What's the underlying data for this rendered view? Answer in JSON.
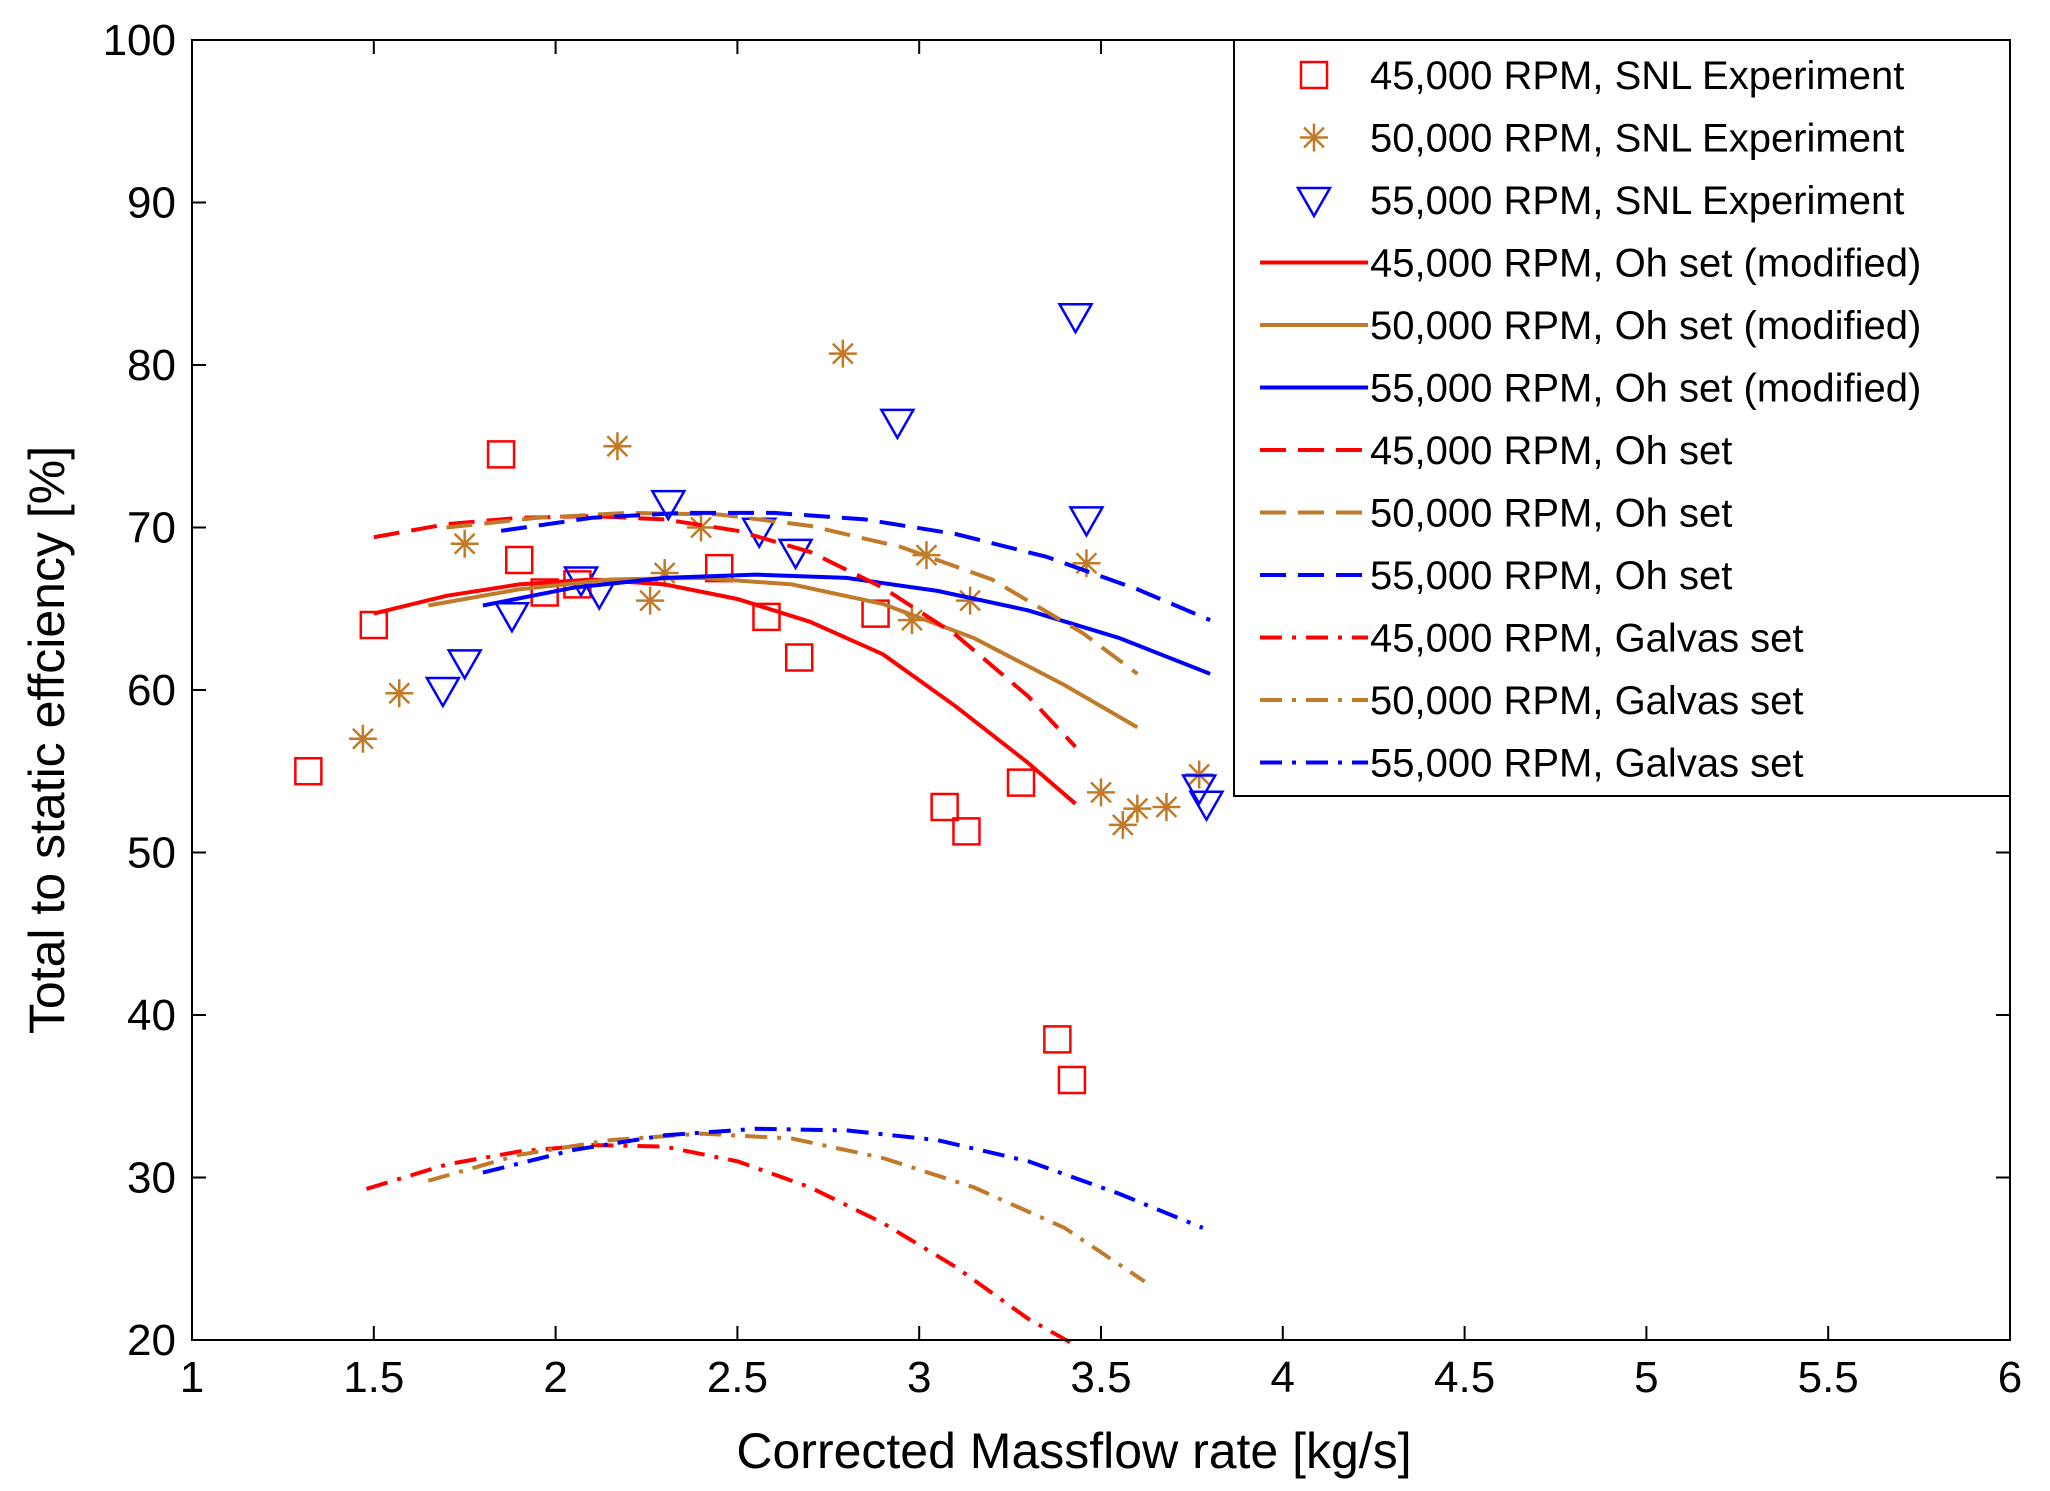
{
  "chart_data": {
    "type": "scatter",
    "title": "",
    "xlabel": "Corrected Massflow rate [kg/s]",
    "ylabel": "Total to static effciency [%]",
    "xlim": [
      1,
      6
    ],
    "ylim": [
      20,
      100
    ],
    "x_ticks": [
      1,
      1.5,
      2,
      2.5,
      3,
      3.5,
      4,
      4.5,
      5,
      5.5,
      6
    ],
    "x_tick_labels": [
      "1",
      "1.5",
      "2",
      "2.5",
      "3",
      "3.5",
      "4",
      "4.5",
      "5",
      "5.5",
      "6"
    ],
    "y_ticks": [
      20,
      30,
      40,
      50,
      60,
      70,
      80,
      90,
      100
    ],
    "y_tick_labels": [
      "20",
      "30",
      "40",
      "50",
      "60",
      "70",
      "80",
      "90",
      "100"
    ],
    "grid": false,
    "legend_position": "top-right",
    "colors": {
      "red": "#ff0000",
      "gold": "#c07a2a",
      "blue": "#0000ff"
    },
    "series": [
      {
        "name": "45,000 RPM, SNL Experiment",
        "kind": "marker",
        "marker": "square",
        "color": "#ff0000",
        "x": [
          1.32,
          1.5,
          1.85,
          1.9,
          1.97,
          2.06,
          2.45,
          2.58,
          2.67,
          2.88,
          3.07,
          3.13,
          3.28,
          3.38,
          3.42
        ],
        "y": [
          55,
          64,
          74.5,
          68,
          66,
          66.5,
          67.5,
          64.5,
          62,
          64.7,
          52.8,
          51.3,
          54.3,
          38.5,
          36
        ]
      },
      {
        "name": "50,000 RPM, SNL Experiment",
        "kind": "marker",
        "marker": "asterisk",
        "color": "#c07a2a",
        "x": [
          1.47,
          1.57,
          1.75,
          2.17,
          2.26,
          2.3,
          2.4,
          2.79,
          2.98,
          3.02,
          3.14,
          3.46,
          3.5,
          3.56,
          3.6,
          3.68,
          3.77
        ],
        "y": [
          57,
          59.8,
          69,
          75,
          65.5,
          67.2,
          70,
          80.7,
          64.3,
          68.3,
          65.5,
          67.8,
          53.7,
          51.7,
          52.7,
          52.8,
          54.8
        ]
      },
      {
        "name": "55,000 RPM, SNL Experiment",
        "kind": "marker",
        "marker": "triangle-down",
        "color": "#0000ff",
        "x": [
          1.69,
          1.75,
          1.88,
          2.07,
          2.12,
          2.31,
          2.56,
          2.66,
          2.94,
          3.43,
          3.46,
          3.77,
          3.79
        ],
        "y": [
          60,
          61.7,
          64.6,
          66.8,
          66,
          71.5,
          69.8,
          68.5,
          76.5,
          83,
          70.5,
          54,
          53
        ]
      },
      {
        "name": "45,000 RPM, Oh set (modified)",
        "kind": "line",
        "dash": "solid",
        "color": "#ff0000",
        "x": [
          1.5,
          1.7,
          1.9,
          2.1,
          2.3,
          2.5,
          2.7,
          2.9,
          3.1,
          3.3,
          3.43
        ],
        "y": [
          64.7,
          65.8,
          66.5,
          66.8,
          66.5,
          65.6,
          64.2,
          62.2,
          59.0,
          55.5,
          53.0
        ]
      },
      {
        "name": "50,000 RPM, Oh set (modified)",
        "kind": "line",
        "dash": "solid",
        "color": "#c07a2a",
        "x": [
          1.65,
          1.9,
          2.15,
          2.4,
          2.65,
          2.9,
          3.15,
          3.4,
          3.6
        ],
        "y": [
          65.2,
          66.2,
          66.8,
          66.9,
          66.5,
          65.3,
          63.2,
          60.3,
          57.7
        ]
      },
      {
        "name": "55,000 RPM, Oh set (modified)",
        "kind": "line",
        "dash": "solid",
        "color": "#0000ff",
        "x": [
          1.8,
          2.05,
          2.3,
          2.55,
          2.8,
          3.05,
          3.3,
          3.55,
          3.8
        ],
        "y": [
          65.2,
          66.3,
          66.9,
          67.1,
          66.9,
          66.1,
          64.9,
          63.2,
          61.0
        ]
      },
      {
        "name": "45,000 RPM, Oh set",
        "kind": "line",
        "dash": "dashed",
        "color": "#ff0000",
        "x": [
          1.5,
          1.7,
          1.9,
          2.1,
          2.3,
          2.5,
          2.7,
          2.9,
          3.1,
          3.3,
          3.43
        ],
        "y": [
          69.4,
          70.2,
          70.6,
          70.7,
          70.5,
          69.8,
          68.5,
          66.3,
          63.4,
          59.6,
          56.5
        ]
      },
      {
        "name": "50,000 RPM, Oh set",
        "kind": "line",
        "dash": "dashed",
        "color": "#c07a2a",
        "x": [
          1.7,
          1.95,
          2.2,
          2.45,
          2.7,
          2.95,
          3.2,
          3.45,
          3.6
        ],
        "y": [
          70.0,
          70.6,
          70.9,
          70.8,
          70.1,
          68.8,
          66.8,
          63.5,
          61.0
        ]
      },
      {
        "name": "55,000 RPM, Oh set",
        "kind": "line",
        "dash": "dashed",
        "color": "#0000ff",
        "x": [
          1.85,
          2.1,
          2.35,
          2.6,
          2.85,
          3.1,
          3.35,
          3.6,
          3.8
        ],
        "y": [
          69.8,
          70.6,
          70.9,
          70.9,
          70.5,
          69.6,
          68.2,
          66.2,
          64.3
        ]
      },
      {
        "name": "45,000 RPM, Galvas set",
        "kind": "line",
        "dash": "dashdot",
        "color": "#ff0000",
        "x": [
          1.48,
          1.7,
          1.9,
          2.1,
          2.3,
          2.5,
          2.7,
          2.9,
          3.1,
          3.3,
          3.42
        ],
        "y": [
          29.3,
          30.8,
          31.6,
          32.0,
          31.9,
          31.0,
          29.4,
          27.2,
          24.5,
          21.3,
          19.8
        ]
      },
      {
        "name": "50,000 RPM, Galvas set",
        "kind": "line",
        "dash": "dashdot",
        "color": "#c07a2a",
        "x": [
          1.65,
          1.9,
          2.15,
          2.4,
          2.65,
          2.9,
          3.15,
          3.4,
          3.62
        ],
        "y": [
          29.8,
          31.4,
          32.3,
          32.7,
          32.4,
          31.2,
          29.4,
          26.9,
          23.6
        ]
      },
      {
        "name": "55,000 RPM, Galvas set",
        "kind": "line",
        "dash": "dashdot",
        "color": "#0000ff",
        "x": [
          1.8,
          2.05,
          2.3,
          2.55,
          2.8,
          3.05,
          3.3,
          3.55,
          3.78
        ],
        "y": [
          30.3,
          31.7,
          32.6,
          33.0,
          32.9,
          32.3,
          31.0,
          29.0,
          26.9
        ]
      }
    ]
  }
}
